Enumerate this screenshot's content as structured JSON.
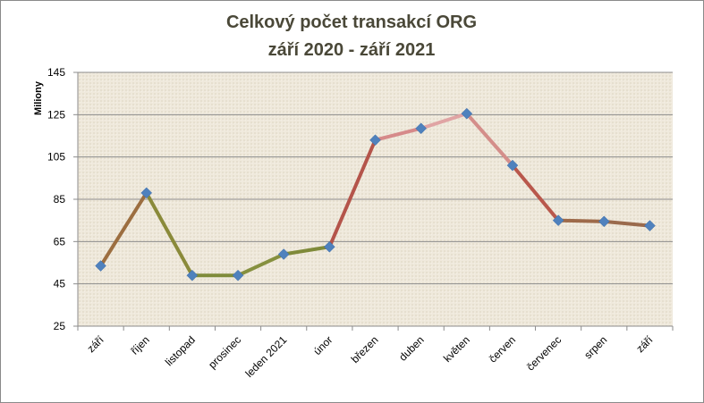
{
  "chart_data": {
    "type": "line",
    "title": "Celkový počet transakcí ORG",
    "subtitle": "září 2020 - září 2021",
    "y_label": "Miliony",
    "categories": [
      "září",
      "říjen",
      "listopad",
      "prosinec",
      "leden 2021",
      "únor",
      "březen",
      "duben",
      "květen",
      "červen",
      "červenec",
      "srpen",
      "září"
    ],
    "series": [
      {
        "name": "Počet transakcí",
        "color": "#4f81bd",
        "values": [
          53.5,
          88,
          49,
          49,
          59,
          62.5,
          113,
          118.5,
          125.5,
          101,
          75,
          74.5,
          72.5
        ]
      }
    ],
    "segment_colors": [
      "#9c6e40",
      "#8a8a3a",
      "#7f8b3a",
      "#86903f",
      "#7f8a3a",
      "#b4544a",
      "#d68a8a",
      "#e0a4a4",
      "#d48e8a",
      "#b9584c",
      "#9e6a4a",
      "#9a6a4c"
    ],
    "ylim": [
      25,
      145
    ],
    "yticks": [
      25,
      45,
      65,
      85,
      105,
      125,
      145
    ],
    "grid": true
  }
}
